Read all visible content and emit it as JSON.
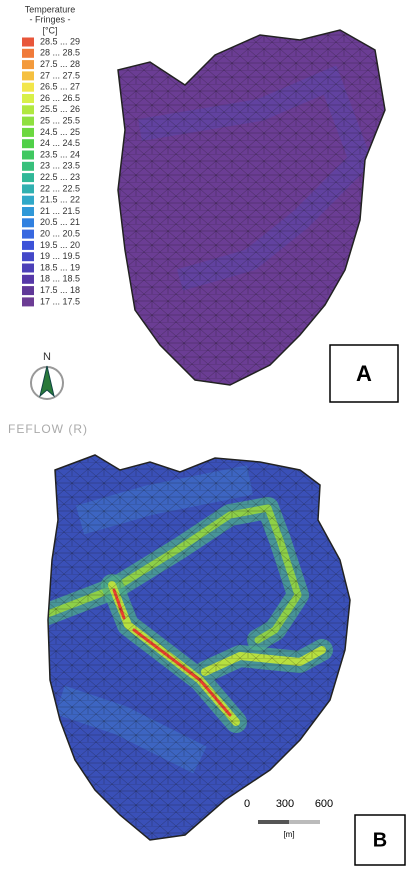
{
  "legend": {
    "title": "Temperature",
    "subtitle": "- Fringes -",
    "unit": "[°C]",
    "items": [
      {
        "label": "28.5 ... 29",
        "color": "#e8563a"
      },
      {
        "label": "28 ... 28.5",
        "color": "#f07a3a"
      },
      {
        "label": "27.5 ... 28",
        "color": "#f39a3c"
      },
      {
        "label": "27 ... 27.5",
        "color": "#f5c040"
      },
      {
        "label": "26.5 ... 27",
        "color": "#f2e64a"
      },
      {
        "label": "26 ... 26.5",
        "color": "#d8f048"
      },
      {
        "label": "25.5 ... 26",
        "color": "#b0e840"
      },
      {
        "label": "25 ... 25.5",
        "color": "#8ee040"
      },
      {
        "label": "24.5 ... 25",
        "color": "#6cd840"
      },
      {
        "label": "24 ... 24.5",
        "color": "#50d048"
      },
      {
        "label": "23.5 ... 24",
        "color": "#40c860"
      },
      {
        "label": "23 ... 23.5",
        "color": "#38c07c"
      },
      {
        "label": "22.5 ... 23",
        "color": "#30b898"
      },
      {
        "label": "22 ... 22.5",
        "color": "#30b0b0"
      },
      {
        "label": "21.5 ... 22",
        "color": "#30a8c8"
      },
      {
        "label": "21 ... 21.5",
        "color": "#3098d8"
      },
      {
        "label": "20.5 ... 21",
        "color": "#3080e0"
      },
      {
        "label": "20 ... 20.5",
        "color": "#3868e0"
      },
      {
        "label": "19.5 ... 20",
        "color": "#3c52d8"
      },
      {
        "label": "19 ... 19.5",
        "color": "#4448c8"
      },
      {
        "label": "18.5 ... 19",
        "color": "#4c40b8"
      },
      {
        "label": "18 ... 18.5",
        "color": "#5638a8"
      },
      {
        "label": "17.5 ... 18",
        "color": "#603898"
      },
      {
        "label": "17 ... 17.5",
        "color": "#6c3c94"
      }
    ]
  },
  "north": "N",
  "panel_a": "A",
  "software": "FEFLOW (R)",
  "panel_b": "B",
  "scale": {
    "ticks": [
      "0",
      "300",
      "600"
    ],
    "unit": "[m]"
  }
}
